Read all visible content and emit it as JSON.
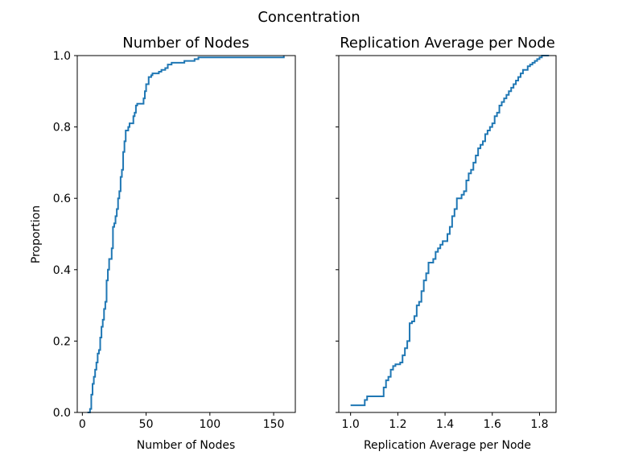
{
  "figure": {
    "suptitle": "Concentration"
  },
  "chart_data": [
    {
      "type": "line",
      "step": "ecdf",
      "title": "Number of Nodes",
      "xlabel": "Number of Nodes",
      "ylabel": "Proportion",
      "xlim": [
        -4,
        167
      ],
      "ylim": [
        0,
        1
      ],
      "xticks": [
        0,
        50,
        100,
        150
      ],
      "yticks": [
        0.0,
        0.2,
        0.4,
        0.6,
        0.8,
        1.0
      ],
      "xtick_labels": [
        "0",
        "50",
        "100",
        "150"
      ],
      "ytick_labels": [
        "0.0",
        "0.2",
        "0.4",
        "0.6",
        "0.8",
        "1.0"
      ],
      "color": "#1f77b4",
      "grid": false,
      "series": [
        {
          "x": [
            4,
            6,
            7,
            8,
            9,
            10,
            11,
            12,
            13,
            14,
            15,
            16,
            17,
            18,
            19,
            20,
            21,
            22,
            23,
            24,
            25,
            26,
            27,
            28,
            29,
            30,
            31,
            32,
            33,
            34,
            35,
            36,
            37,
            38,
            40,
            41,
            42,
            43,
            45,
            48,
            49,
            50,
            52,
            54,
            55,
            60,
            62,
            65,
            67,
            70,
            75,
            80,
            88,
            91,
            100,
            110,
            158
          ],
          "y": [
            0.0,
            0.01,
            0.05,
            0.08,
            0.1,
            0.12,
            0.14,
            0.165,
            0.175,
            0.21,
            0.24,
            0.26,
            0.29,
            0.31,
            0.37,
            0.4,
            0.43,
            0.43,
            0.46,
            0.52,
            0.53,
            0.55,
            0.57,
            0.6,
            0.62,
            0.66,
            0.68,
            0.73,
            0.76,
            0.79,
            0.79,
            0.8,
            0.81,
            0.81,
            0.83,
            0.84,
            0.86,
            0.865,
            0.865,
            0.88,
            0.9,
            0.92,
            0.94,
            0.945,
            0.95,
            0.955,
            0.96,
            0.965,
            0.975,
            0.98,
            0.98,
            0.985,
            0.99,
            0.995,
            0.995,
            0.995,
            1.0
          ]
        }
      ]
    },
    {
      "type": "line",
      "step": "ecdf",
      "title": "Replication Average per Node",
      "xlabel": "Replication Average per Node",
      "ylabel": "",
      "xlim": [
        0.95,
        1.87
      ],
      "ylim": [
        0,
        1
      ],
      "xticks": [
        1.0,
        1.2,
        1.4,
        1.6,
        1.8
      ],
      "yticks": [
        0.0,
        0.2,
        0.4,
        0.6,
        0.8,
        1.0
      ],
      "xtick_labels": [
        "1.0",
        "1.2",
        "1.4",
        "1.6",
        "1.8"
      ],
      "ytick_labels": [],
      "color": "#1f77b4",
      "grid": false,
      "series": [
        {
          "x": [
            1.0,
            1.06,
            1.07,
            1.09,
            1.14,
            1.15,
            1.16,
            1.17,
            1.18,
            1.19,
            1.21,
            1.22,
            1.23,
            1.24,
            1.25,
            1.26,
            1.27,
            1.28,
            1.29,
            1.3,
            1.31,
            1.32,
            1.33,
            1.34,
            1.35,
            1.36,
            1.37,
            1.38,
            1.39,
            1.4,
            1.41,
            1.42,
            1.43,
            1.44,
            1.45,
            1.46,
            1.47,
            1.48,
            1.49,
            1.5,
            1.51,
            1.52,
            1.53,
            1.54,
            1.55,
            1.56,
            1.57,
            1.58,
            1.59,
            1.6,
            1.61,
            1.62,
            1.63,
            1.64,
            1.65,
            1.66,
            1.67,
            1.68,
            1.69,
            1.7,
            1.71,
            1.72,
            1.73,
            1.74,
            1.75,
            1.76,
            1.77,
            1.78,
            1.79,
            1.8,
            1.81,
            1.84
          ],
          "y": [
            0.02,
            0.035,
            0.045,
            0.045,
            0.07,
            0.09,
            0.1,
            0.12,
            0.13,
            0.135,
            0.14,
            0.16,
            0.18,
            0.2,
            0.25,
            0.255,
            0.27,
            0.3,
            0.31,
            0.34,
            0.37,
            0.39,
            0.42,
            0.42,
            0.43,
            0.45,
            0.46,
            0.47,
            0.48,
            0.48,
            0.5,
            0.52,
            0.55,
            0.57,
            0.6,
            0.6,
            0.61,
            0.62,
            0.65,
            0.67,
            0.68,
            0.7,
            0.72,
            0.74,
            0.75,
            0.76,
            0.78,
            0.79,
            0.8,
            0.81,
            0.83,
            0.84,
            0.86,
            0.87,
            0.88,
            0.89,
            0.9,
            0.91,
            0.92,
            0.93,
            0.94,
            0.95,
            0.96,
            0.96,
            0.97,
            0.975,
            0.98,
            0.985,
            0.99,
            0.995,
            1.0,
            1.0
          ]
        }
      ]
    }
  ]
}
